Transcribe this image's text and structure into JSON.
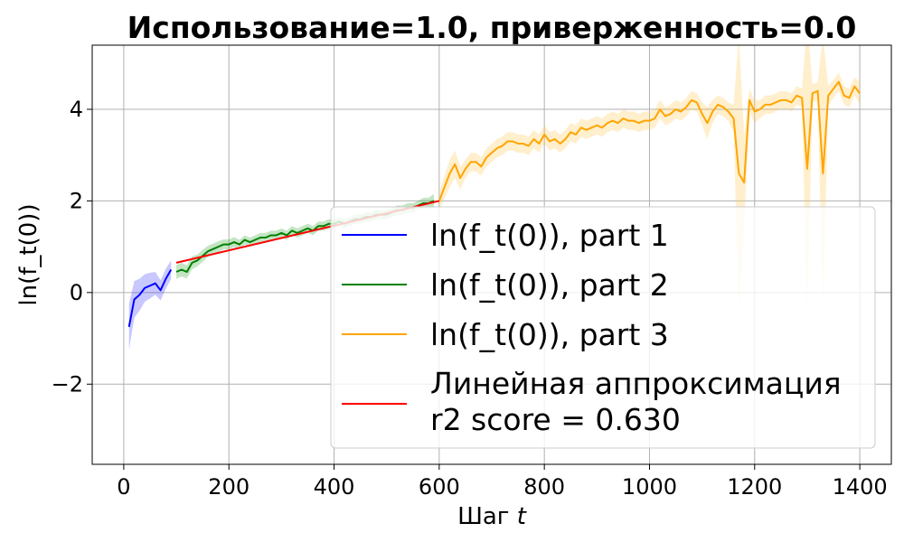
{
  "chart_data": {
    "type": "line",
    "title": "Использование=1.0, приверженность=0.0",
    "xlabel": "Шаг",
    "xlabel_var": "t",
    "ylabel": "ln(f_t(0))",
    "xlim": [
      -60,
      1460
    ],
    "ylim": [
      -3.75,
      5.4
    ],
    "xticks": [
      0,
      200,
      400,
      600,
      800,
      1000,
      1200,
      1400
    ],
    "yticks": [
      -2,
      0,
      2,
      4
    ],
    "grid": true,
    "legend_position": "lower-right",
    "series": [
      {
        "name": "ln(f_t(0)), part 1",
        "color": "#0000ff",
        "band_color": "#3b3bff",
        "x": [
          10,
          20,
          30,
          40,
          50,
          60,
          70,
          80,
          90
        ],
        "y": [
          -0.75,
          -0.15,
          -0.05,
          0.1,
          0.15,
          0.2,
          0.05,
          0.3,
          0.5
        ],
        "err": [
          0.5,
          0.4,
          0.35,
          0.3,
          0.28,
          0.25,
          0.22,
          0.22,
          0.2
        ]
      },
      {
        "name": "ln(f_t(0)), part 2",
        "color": "#008000",
        "band_color": "#2ca02c",
        "x": [
          100,
          110,
          120,
          130,
          140,
          150,
          160,
          170,
          180,
          190,
          200,
          210,
          220,
          230,
          240,
          250,
          260,
          270,
          280,
          290,
          300,
          310,
          320,
          330,
          340,
          350,
          360,
          370,
          380,
          390,
          400,
          410,
          420,
          430,
          440,
          450,
          460,
          470,
          480,
          490,
          500,
          510,
          520,
          530,
          540,
          550,
          560,
          570,
          580,
          590
        ],
        "y": [
          0.45,
          0.5,
          0.45,
          0.65,
          0.7,
          0.8,
          0.9,
          0.95,
          1.0,
          1.05,
          1.05,
          1.1,
          1.05,
          1.15,
          1.1,
          1.15,
          1.2,
          1.2,
          1.25,
          1.25,
          1.3,
          1.25,
          1.35,
          1.3,
          1.35,
          1.4,
          1.35,
          1.45,
          1.45,
          1.5,
          1.5,
          1.55,
          1.5,
          1.55,
          1.6,
          1.6,
          1.65,
          1.65,
          1.7,
          1.7,
          1.7,
          1.75,
          1.8,
          1.8,
          1.85,
          1.85,
          1.9,
          1.95,
          1.95,
          2.0
        ],
        "err": [
          0.15,
          0.15,
          0.14,
          0.14,
          0.13,
          0.13,
          0.12,
          0.12,
          0.12,
          0.11,
          0.11,
          0.11,
          0.1,
          0.1,
          0.1,
          0.1,
          0.1,
          0.1,
          0.1,
          0.1,
          0.1,
          0.1,
          0.1,
          0.1,
          0.1,
          0.1,
          0.1,
          0.1,
          0.1,
          0.1,
          0.1,
          0.1,
          0.1,
          0.1,
          0.1,
          0.1,
          0.1,
          0.1,
          0.1,
          0.1,
          0.1,
          0.1,
          0.1,
          0.1,
          0.1,
          0.1,
          0.1,
          0.12,
          0.12,
          0.15
        ]
      },
      {
        "name": "ln(f_t(0)), part 3",
        "color": "#ffa500",
        "band_color": "#ffc64d",
        "x": [
          600,
          610,
          620,
          630,
          640,
          650,
          660,
          670,
          680,
          690,
          700,
          710,
          720,
          730,
          740,
          750,
          760,
          770,
          780,
          790,
          800,
          810,
          820,
          830,
          840,
          850,
          860,
          870,
          880,
          890,
          900,
          910,
          920,
          930,
          940,
          950,
          960,
          970,
          980,
          990,
          1000,
          1010,
          1020,
          1030,
          1040,
          1050,
          1060,
          1070,
          1080,
          1090,
          1100,
          1110,
          1120,
          1130,
          1140,
          1150,
          1160,
          1170,
          1180,
          1190,
          1200,
          1210,
          1220,
          1230,
          1240,
          1250,
          1260,
          1270,
          1280,
          1290,
          1300,
          1310,
          1320,
          1330,
          1340,
          1350,
          1360,
          1370,
          1380,
          1390,
          1400
        ],
        "y": [
          2.0,
          2.3,
          2.6,
          2.8,
          2.5,
          2.7,
          2.85,
          2.85,
          2.75,
          2.95,
          3.05,
          3.15,
          3.2,
          3.3,
          3.3,
          3.25,
          3.25,
          3.2,
          3.35,
          3.25,
          3.45,
          3.3,
          3.35,
          3.25,
          3.35,
          3.5,
          3.45,
          3.6,
          3.55,
          3.6,
          3.65,
          3.6,
          3.7,
          3.75,
          3.7,
          3.8,
          3.75,
          3.75,
          3.7,
          3.75,
          3.75,
          3.8,
          4.0,
          3.85,
          3.9,
          4.0,
          3.95,
          4.05,
          4.2,
          4.15,
          3.9,
          3.7,
          3.95,
          4.1,
          4.05,
          3.95,
          3.8,
          2.6,
          2.4,
          4.2,
          3.95,
          4.0,
          4.1,
          4.1,
          4.15,
          4.2,
          4.2,
          4.15,
          4.3,
          4.25,
          2.7,
          4.35,
          4.4,
          2.6,
          4.3,
          4.45,
          4.6,
          4.3,
          4.25,
          4.5,
          4.35
        ],
        "err": [
          0.2,
          0.25,
          0.3,
          0.3,
          0.25,
          0.2,
          0.2,
          0.2,
          0.2,
          0.2,
          0.2,
          0.2,
          0.2,
          0.2,
          0.2,
          0.2,
          0.2,
          0.2,
          0.2,
          0.2,
          0.2,
          0.2,
          0.2,
          0.2,
          0.2,
          0.2,
          0.2,
          0.2,
          0.2,
          0.2,
          0.2,
          0.2,
          0.2,
          0.2,
          0.2,
          0.2,
          0.2,
          0.2,
          0.2,
          0.2,
          0.2,
          0.2,
          0.2,
          0.2,
          0.2,
          0.2,
          0.2,
          0.2,
          0.2,
          0.2,
          0.25,
          0.35,
          0.25,
          0.2,
          0.2,
          0.2,
          0.3,
          3.0,
          1.0,
          0.25,
          0.25,
          0.2,
          0.2,
          0.2,
          0.2,
          0.2,
          0.2,
          0.2,
          0.2,
          0.2,
          3.2,
          0.2,
          0.2,
          3.0,
          0.2,
          0.2,
          0.2,
          0.2,
          0.2,
          0.2,
          0.25
        ]
      }
    ],
    "fit": {
      "name": "Линейная аппроксимация",
      "score_label": "r2 score = 0.630",
      "color": "#ff0000",
      "x": [
        100,
        600
      ],
      "y": [
        0.65,
        2.0
      ]
    }
  }
}
